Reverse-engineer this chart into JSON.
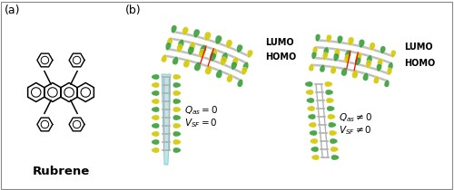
{
  "panel_a_label": "(a)",
  "panel_b_label": "(b)",
  "rubrene_label": "Rubrene",
  "lumo_label": "LUMO",
  "homo_label": "HOMO",
  "left_eq1": "$Q_{as} = 0$",
  "left_eq2": "$V_{SF} = 0$",
  "right_eq1": "$Q_{as} \\neq 0$",
  "right_eq2": "$V_{SF} \\neq 0$",
  "bg_color": "#ffffff",
  "green_dark": "#3a9e3a",
  "yellow": "#d4c800",
  "gray_mol": "#b8b8b8",
  "cyan_color": "#7ecece",
  "label_fontsize": 9,
  "eq_fontsize": 7.5,
  "border_color": "#cccccc"
}
